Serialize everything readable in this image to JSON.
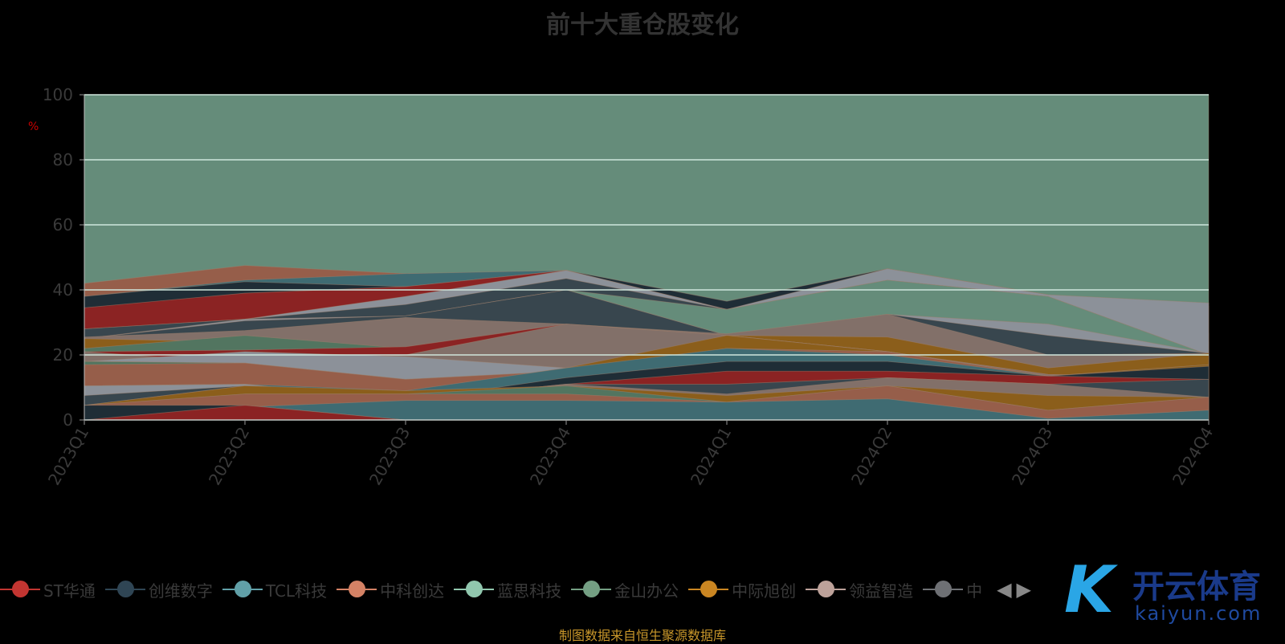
{
  "chart_data": {
    "type": "area",
    "title": "前十大重仓股变化",
    "ylabel": "%",
    "ylim": [
      0,
      100
    ],
    "yticks": [
      "0",
      "20",
      "40",
      "60",
      "80",
      "100"
    ],
    "categories": [
      "2023Q1",
      "2023Q2",
      "2023Q3",
      "2023Q4",
      "2024Q1",
      "2024Q2",
      "2024Q3",
      "2024Q4"
    ],
    "grid": true,
    "legend_position": "bottom",
    "legend": [
      {
        "name": "ST华通",
        "color": "#c23531"
      },
      {
        "name": "创维数字",
        "color": "#2f4554"
      },
      {
        "name": "TCL科技",
        "color": "#61a0a8"
      },
      {
        "name": "中科创达",
        "color": "#d48265"
      },
      {
        "name": "蓝思科技",
        "color": "#91c7ae"
      },
      {
        "name": "金山办公",
        "color": "#749f83"
      },
      {
        "name": "中际旭创",
        "color": "#ca8622"
      },
      {
        "name": "领益智造",
        "color": "#bda29a"
      },
      {
        "name": "中",
        "color": "#6e7074"
      }
    ],
    "series": [
      {
        "color": "#658c7a",
        "values": [
          100,
          100,
          100,
          100,
          100,
          100,
          100,
          100
        ]
      },
      {
        "color": "#965e4a",
        "values": [
          42,
          47.5,
          45,
          45,
          34,
          45,
          37,
          35
        ]
      },
      {
        "color": "#3f6b72",
        "values": [
          38,
          43,
          45,
          46,
          34,
          45,
          37,
          26.7
        ]
      },
      {
        "color": "#1f2d36",
        "values": [
          38,
          42.5,
          41,
          46,
          36.5,
          46.5,
          38.5,
          24
        ]
      },
      {
        "color": "#8b2323",
        "values": [
          34.5,
          39,
          41,
          46,
          34,
          44,
          38,
          20
        ]
      },
      {
        "color": "#8c9199",
        "values": [
          28,
          31,
          38,
          46,
          34,
          46.5,
          38.5,
          36
        ]
      },
      {
        "color": "#38464e",
        "values": [
          28,
          31,
          35.5,
          43.5,
          34,
          43,
          38,
          20
        ]
      },
      {
        "color": "#658c7a",
        "values": [
          25,
          30,
          32,
          40,
          34,
          43,
          38,
          20
        ]
      },
      {
        "color": "#8c9199",
        "values": [
          25,
          31,
          32,
          40,
          26,
          32.5,
          29.5,
          20.5
        ]
      },
      {
        "color": "#38464e",
        "values": [
          25,
          30.5,
          32,
          40,
          26,
          32.5,
          26,
          20.5
        ]
      },
      {
        "color": "#827069",
        "values": [
          25.5,
          27.5,
          31.5,
          29.5,
          26.5,
          32.5,
          20,
          20.5
        ]
      },
      {
        "color": "#8b5e1b",
        "values": [
          25,
          24,
          12.5,
          21,
          26,
          25.5,
          16,
          20.5
        ]
      },
      {
        "color": "#527560",
        "values": [
          22,
          26,
          22,
          16,
          26,
          21,
          13.5,
          17
        ]
      },
      {
        "color": "#8b2323",
        "values": [
          21,
          21.5,
          22.5,
          29.5,
          26,
          21,
          14,
          13
        ]
      },
      {
        "color": "#827069",
        "values": [
          21,
          17.5,
          20,
          29.5,
          26,
          21,
          14,
          13
        ]
      },
      {
        "color": "#8c9199",
        "values": [
          18,
          21,
          19.5,
          16,
          21.5,
          20,
          13.5,
          13
        ]
      },
      {
        "color": "#8b5e1b",
        "values": [
          18,
          17.5,
          9,
          16,
          26,
          21,
          13.5,
          17
        ]
      },
      {
        "color": "#527560",
        "values": [
          18,
          17.5,
          12.5,
          15,
          22,
          21,
          13.5,
          13
        ]
      },
      {
        "color": "#965e4a",
        "values": [
          17,
          17.5,
          12.5,
          15,
          22,
          21,
          13.5,
          13
        ]
      },
      {
        "color": "#3f6b72",
        "values": [
          10.5,
          11,
          9,
          16,
          22,
          20,
          13.5,
          13
        ]
      },
      {
        "color": "#1f2d36",
        "values": [
          10.5,
          11,
          6,
          13,
          18,
          18,
          13.5,
          16.5
        ]
      },
      {
        "color": "#8b2323",
        "values": [
          7.5,
          10.5,
          6,
          11,
          15,
          15,
          13.5,
          12.5
        ]
      },
      {
        "color": "#8c9199",
        "values": [
          10.5,
          11,
          6,
          8,
          8,
          13,
          11,
          9
        ]
      },
      {
        "color": "#38464e",
        "values": [
          7.5,
          10.5,
          6,
          11,
          11,
          13,
          11,
          12.5
        ]
      },
      {
        "color": "#827069",
        "values": [
          4.5,
          10.5,
          6,
          11,
          8,
          13,
          11,
          7
        ]
      },
      {
        "color": "#8b5e1b",
        "values": [
          4.5,
          10.5,
          9,
          10.5,
          7.5,
          10.5,
          7.5,
          7
        ]
      },
      {
        "color": "#527560",
        "values": [
          4.5,
          8,
          8,
          10.5,
          5.5,
          10.5,
          3,
          7
        ]
      },
      {
        "color": "#965e4a",
        "values": [
          4.5,
          8,
          8,
          8,
          5.5,
          10.5,
          3,
          7
        ]
      },
      {
        "color": "#3f6b72",
        "values": [
          4.5,
          4,
          6,
          6,
          5.5,
          6.5,
          0.5,
          3
        ]
      },
      {
        "color": "#1f2d36",
        "values": [
          4.5,
          4.5,
          0,
          0,
          0,
          0,
          0,
          0
        ]
      },
      {
        "color": "#8b2323",
        "values": [
          0,
          4.5,
          0,
          0,
          0,
          0,
          0,
          0
        ]
      }
    ]
  },
  "footer": {
    "source": "制图数据来自恒生聚源数据库"
  },
  "watermark": {
    "logo": "K",
    "cn": "开云体育",
    "en": "kaiyun.com"
  }
}
